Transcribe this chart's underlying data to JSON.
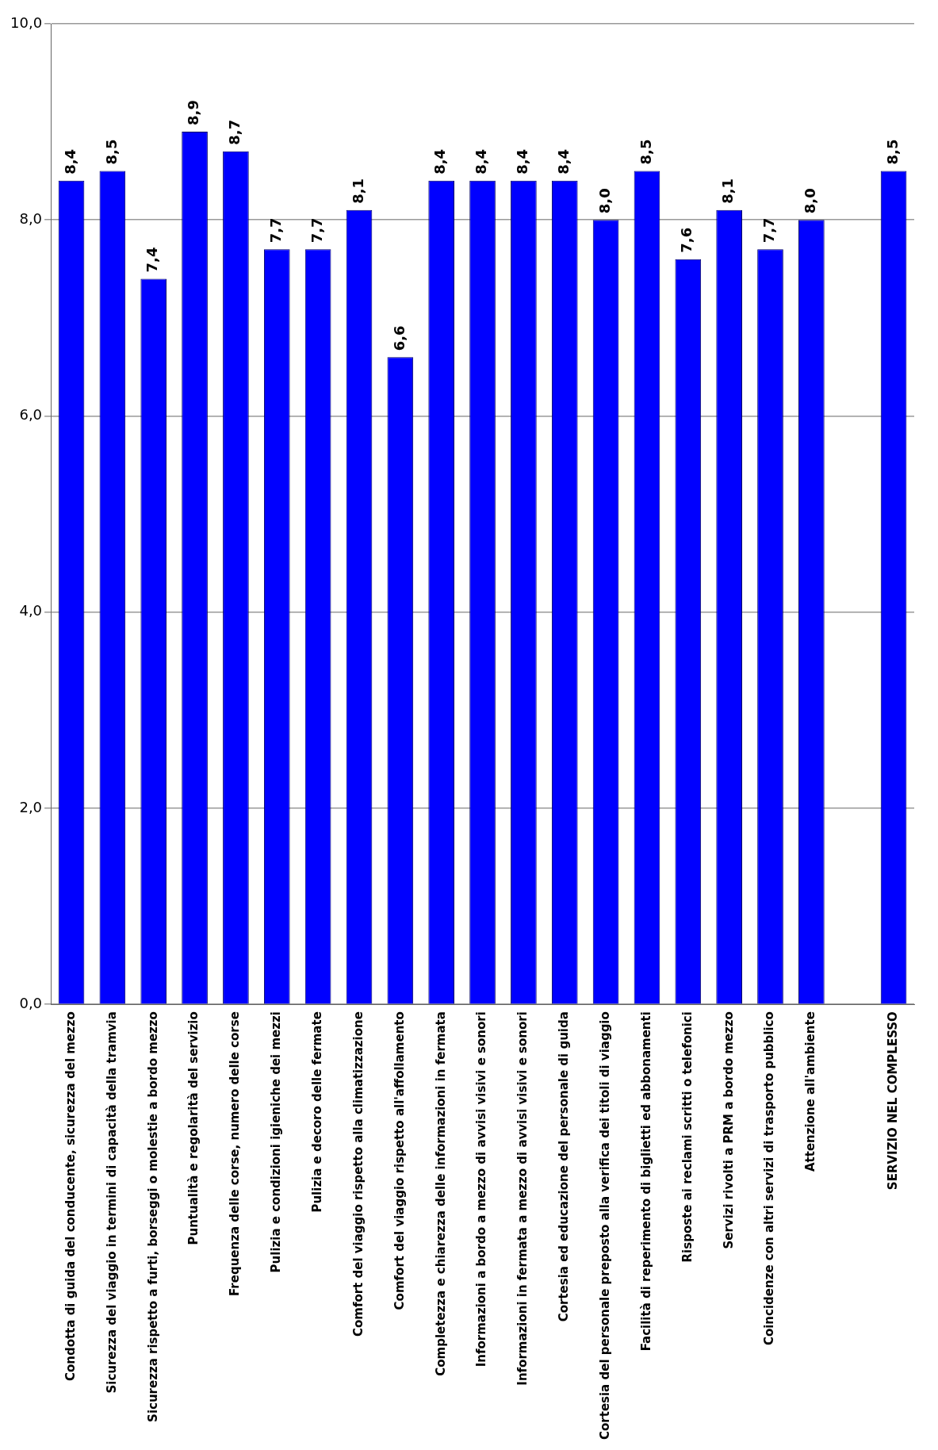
{
  "chart_data": {
    "type": "bar",
    "categories": [
      "Condotta di guida del conducente, sicurezza del mezzo",
      "Sicurezza del viaggio in termini di capacità della tramvia",
      "Sicurezza rispetto a furti, borseggi o molestie a bordo mezzo",
      "Puntualità e regolarità del servizio",
      "Frequenza delle corse, numero delle corse",
      "Pulizia e condizioni igieniche dei mezzi",
      "Pulizia e decoro delle fermate",
      "Comfort del viaggio rispetto alla climatizzazione",
      "Comfort del viaggio rispetto all'affollamento",
      "Completezza e chiarezza delle informazioni in fermata",
      "Informazioni a bordo a mezzo di avvisi visivi e sonori",
      "Informazioni in fermata a mezzo di avvisi visivi e sonori",
      "Cortesia ed educazione del personale di guida",
      "Cortesia del personale preposto alla verifica dei titoli di viaggio",
      "Facilità di reperimento di biglietti ed abbonamenti",
      "Risposte ai reclami scritti o telefonici",
      "Servizi rivolti a PRM a bordo mezzo",
      "Coincidenze con altri servizi di trasporto pubblico",
      "Attenzione all'ambiente",
      null,
      "SERVIZIO NEL COMPLESSO"
    ],
    "values": [
      8.4,
      8.5,
      7.4,
      8.9,
      8.7,
      7.7,
      7.7,
      8.1,
      6.6,
      8.4,
      8.4,
      8.4,
      8.4,
      8.0,
      8.5,
      7.6,
      8.1,
      7.7,
      8.0,
      null,
      8.5
    ],
    "value_labels": [
      "8,4",
      "8,5",
      "7,4",
      "8,9",
      "8,7",
      "7,7",
      "7,7",
      "8,1",
      "6,6",
      "8,4",
      "8,4",
      "8,4",
      "8,4",
      "8,0",
      "8,5",
      "7,6",
      "8,1",
      "7,7",
      "8,0",
      null,
      "8,5"
    ],
    "color": "#0000ff",
    "ylim": [
      0,
      10
    ],
    "yticks": [
      {
        "value": 0,
        "label": "0,0"
      },
      {
        "value": 2,
        "label": "2,0"
      },
      {
        "value": 4,
        "label": "4,0"
      },
      {
        "value": 6,
        "label": "6,0"
      },
      {
        "value": 8,
        "label": "8,0"
      },
      {
        "value": 10,
        "label": "10,0"
      }
    ],
    "grid": "y"
  }
}
